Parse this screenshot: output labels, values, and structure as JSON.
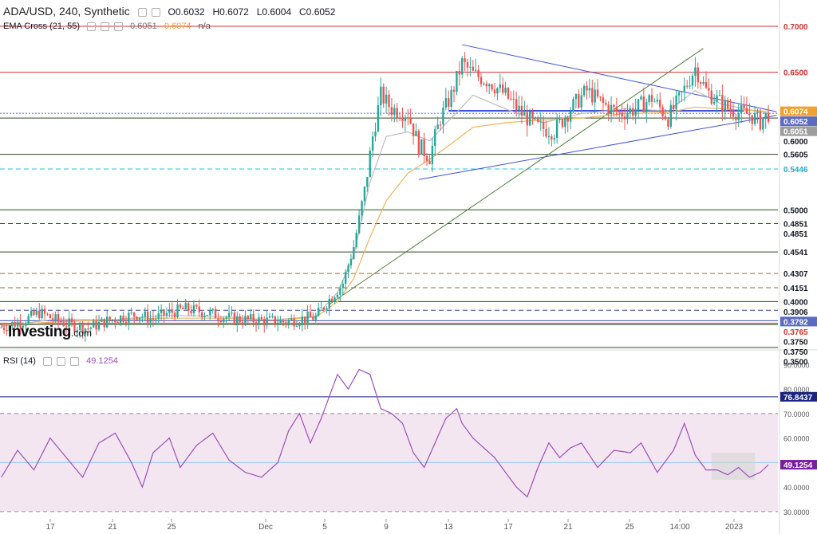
{
  "header": {
    "symbol": "ADA/USD, 240, Synthetic",
    "open": "O0.6032",
    "high": "H0.6072",
    "low": "L0.6004",
    "close": "C0.6052"
  },
  "ema_legend": {
    "name": "EMA Cross (21, 55)",
    "value1": "0.6051",
    "value2": "0.6074",
    "value3": "n/a"
  },
  "rsi_legend": {
    "name": "RSI (14)",
    "value": "49.1254"
  },
  "logo": {
    "text": "Investing",
    "suffix": ".com"
  },
  "colors": {
    "candle_up": "#26a69a",
    "candle_down": "#ef5350",
    "ema_fast": "#bdbdbd",
    "ema_slow": "#f0b35b",
    "trend_blue": "#3f51d8",
    "trend_green": "#4f7f3a",
    "rsi_line": "#9c4fba",
    "rsi_band": "#f3e6f1",
    "resistance_red": "#d32f2f",
    "support_dark_green": "#2e4a23",
    "level_blue_dashed": "#303f9f",
    "level_cyan": "#26c6da",
    "level_brown": "#8d6e4f"
  },
  "chart_data": [
    {
      "type": "candlestick",
      "title": "ADA/USD, 240, Synthetic",
      "ylim": [
        0.35,
        0.72
      ],
      "x_ticks": [
        "17",
        "21",
        "25",
        "Dec",
        "5",
        "9",
        "13",
        "17",
        "21",
        "25",
        "14:00",
        "2023"
      ],
      "price_levels": [
        {
          "value": 0.7,
          "label": "0.7000",
          "color": "#d32f2f",
          "style": "solid",
          "tag": "red"
        },
        {
          "value": 0.65,
          "label": "0.6500",
          "color": "#d32f2f",
          "style": "solid",
          "tag": "red"
        },
        {
          "value": 0.6074,
          "label": "0.6074",
          "color": "#f0a030",
          "style": "none",
          "tag": "orange"
        },
        {
          "value": 0.6052,
          "label": "0.6052",
          "color": "#5c6bc0",
          "style": "dotted",
          "tag": "blue"
        },
        {
          "value": 0.6051,
          "label": "0.6051",
          "color": "#9e9e9e",
          "style": "none",
          "tag": "gray"
        },
        {
          "value": 0.6,
          "label": "0.6000",
          "color": "#2e4a23",
          "style": "solid",
          "tag": "none"
        },
        {
          "value": 0.5605,
          "label": "0.5605",
          "color": "#2e4a23",
          "style": "solid",
          "tag": "none"
        },
        {
          "value": 0.5446,
          "label": "0.5446",
          "color": "#26c6da",
          "style": "dashed",
          "tag": "cyan"
        },
        {
          "value": 0.5,
          "label": "0.5000",
          "color": "#2e4a23",
          "style": "solid",
          "tag": "none"
        },
        {
          "value": 0.4851,
          "label": "0.4851",
          "color": "#303f9f",
          "style": "dashed",
          "tag": "none"
        },
        {
          "value": 0.4851,
          "label": "0.4851",
          "color": "#303f9f",
          "style": "none",
          "tag": "none"
        },
        {
          "value": 0.4541,
          "label": "0.4541",
          "color": "#2e4a23",
          "style": "solid",
          "tag": "none"
        },
        {
          "value": 0.4307,
          "label": "0.4307",
          "color": "#8d6e4f",
          "style": "dashed",
          "tag": "none"
        },
        {
          "value": 0.4151,
          "label": "0.4151",
          "color": "#8d6e4f",
          "style": "dashed",
          "tag": "none"
        },
        {
          "value": 0.4,
          "label": "0.4000",
          "color": "#2e4a23",
          "style": "solid",
          "tag": "none"
        },
        {
          "value": 0.3906,
          "label": "0.3906",
          "color": "#303f9f",
          "style": "dashed",
          "tag": "none"
        },
        {
          "value": 0.3792,
          "label": "0.3792",
          "color": "#3f51b5",
          "style": "solid",
          "tag": "blue"
        },
        {
          "value": 0.3765,
          "label": "0.3765",
          "color": "#d32f2f",
          "style": "solid",
          "tag": "red"
        },
        {
          "value": 0.375,
          "label": "0.3750",
          "color": "#2e4a23",
          "style": "solid",
          "tag": "none"
        },
        {
          "value": 0.375,
          "label": "0.3750",
          "color": "#2e4a23",
          "style": "none",
          "tag": "none"
        },
        {
          "value": 0.35,
          "label": "0.3500",
          "color": "#2e4a23",
          "style": "solid",
          "tag": "none"
        }
      ],
      "price_path": [
        [
          0,
          0.372
        ],
        [
          8,
          0.379
        ],
        [
          14,
          0.388
        ],
        [
          20,
          0.38
        ],
        [
          26,
          0.374
        ],
        [
          32,
          0.371
        ],
        [
          38,
          0.378
        ],
        [
          44,
          0.383
        ],
        [
          50,
          0.386
        ],
        [
          56,
          0.381
        ],
        [
          62,
          0.388
        ],
        [
          68,
          0.392
        ],
        [
          74,
          0.389
        ],
        [
          80,
          0.385
        ],
        [
          86,
          0.381
        ],
        [
          92,
          0.38
        ],
        [
          98,
          0.379
        ],
        [
          104,
          0.378
        ],
        [
          110,
          0.381
        ],
        [
          116,
          0.383
        ],
        [
          120,
          0.399
        ],
        [
          126,
          0.42
        ],
        [
          130,
          0.46
        ],
        [
          134,
          0.52
        ],
        [
          137,
          0.58
        ],
        [
          140,
          0.625
        ],
        [
          144,
          0.61
        ],
        [
          150,
          0.605
        ],
        [
          154,
          0.57
        ],
        [
          158,
          0.558
        ],
        [
          162,
          0.6
        ],
        [
          166,
          0.625
        ],
        [
          170,
          0.66
        ],
        [
          174,
          0.648
        ],
        [
          180,
          0.64
        ],
        [
          186,
          0.625
        ],
        [
          192,
          0.605
        ],
        [
          198,
          0.59
        ],
        [
          204,
          0.586
        ],
        [
          210,
          0.61
        ],
        [
          216,
          0.63
        ],
        [
          222,
          0.615
        ],
        [
          228,
          0.605
        ],
        [
          234,
          0.61
        ],
        [
          240,
          0.622
        ],
        [
          246,
          0.6
        ],
        [
          250,
          0.62
        ],
        [
          256,
          0.655
        ],
        [
          260,
          0.63
        ],
        [
          264,
          0.62
        ],
        [
          268,
          0.611
        ],
        [
          272,
          0.606
        ],
        [
          276,
          0.604
        ],
        [
          280,
          0.596
        ],
        [
          283,
          0.605
        ]
      ],
      "ema_fast": [
        [
          0,
          0.373
        ],
        [
          20,
          0.381
        ],
        [
          40,
          0.38
        ],
        [
          60,
          0.385
        ],
        [
          80,
          0.384
        ],
        [
          100,
          0.38
        ],
        [
          116,
          0.384
        ],
        [
          124,
          0.41
        ],
        [
          130,
          0.45
        ],
        [
          136,
          0.53
        ],
        [
          142,
          0.58
        ],
        [
          150,
          0.585
        ],
        [
          158,
          0.575
        ],
        [
          166,
          0.6
        ],
        [
          174,
          0.625
        ],
        [
          186,
          0.61
        ],
        [
          200,
          0.595
        ],
        [
          214,
          0.605
        ],
        [
          230,
          0.61
        ],
        [
          246,
          0.608
        ],
        [
          256,
          0.63
        ],
        [
          266,
          0.615
        ],
        [
          283,
          0.6051
        ]
      ],
      "ema_slow": [
        [
          0,
          0.374
        ],
        [
          20,
          0.378
        ],
        [
          40,
          0.38
        ],
        [
          60,
          0.382
        ],
        [
          80,
          0.382
        ],
        [
          100,
          0.38
        ],
        [
          116,
          0.383
        ],
        [
          124,
          0.4
        ],
        [
          130,
          0.425
        ],
        [
          136,
          0.47
        ],
        [
          142,
          0.51
        ],
        [
          150,
          0.54
        ],
        [
          158,
          0.555
        ],
        [
          166,
          0.572
        ],
        [
          174,
          0.59
        ],
        [
          186,
          0.595
        ],
        [
          200,
          0.598
        ],
        [
          214,
          0.6
        ],
        [
          230,
          0.605
        ],
        [
          246,
          0.606
        ],
        [
          256,
          0.612
        ],
        [
          266,
          0.61
        ],
        [
          283,
          0.6074
        ]
      ],
      "trendlines": [
        {
          "name": "upper",
          "color": "#3f51d8",
          "from": [
            170,
            0.68
          ],
          "to": [
            286,
            0.607
          ]
        },
        {
          "name": "lower",
          "color": "#3f51d8",
          "from": [
            154,
            0.533
          ],
          "to": [
            286,
            0.603
          ]
        },
        {
          "name": "rising",
          "color": "#4f7f3a",
          "from": [
            121,
            0.397
          ],
          "to": [
            259,
            0.676
          ]
        },
        {
          "name": "box",
          "color": "#3f51d8",
          "from": [
            165,
            0.608
          ],
          "to": [
            274,
            0.608
          ]
        }
      ]
    },
    {
      "type": "line",
      "title": "RSI (14)",
      "ylim": [
        28,
        95
      ],
      "y_ticks": [
        30,
        40,
        50,
        60,
        70,
        80,
        90
      ],
      "y_tick_labels": [
        "30.0000",
        "40.0000",
        "50.0000",
        "60.0000",
        "70.0000",
        "80.0000",
        "90.0000"
      ],
      "bands": {
        "upper": 70,
        "lower": 30
      },
      "levels": [
        {
          "value": 76.8437,
          "label": "76.8437",
          "color": "#1a237e",
          "tag": "navy"
        },
        {
          "value": 50,
          "label": "50.0000",
          "color": "#90caf9",
          "tag": "light"
        },
        {
          "value": 49.1254,
          "label": "49.1254",
          "color": "#7b1fa2",
          "tag": "purple"
        }
      ],
      "rsi_path": [
        [
          0,
          44
        ],
        [
          6,
          55
        ],
        [
          12,
          47
        ],
        [
          18,
          60
        ],
        [
          24,
          52
        ],
        [
          30,
          44
        ],
        [
          36,
          58
        ],
        [
          42,
          62
        ],
        [
          48,
          50
        ],
        [
          52,
          40
        ],
        [
          56,
          54
        ],
        [
          62,
          60
        ],
        [
          66,
          48
        ],
        [
          72,
          57
        ],
        [
          78,
          62
        ],
        [
          84,
          51
        ],
        [
          90,
          46
        ],
        [
          96,
          44
        ],
        [
          102,
          50
        ],
        [
          106,
          63
        ],
        [
          110,
          70
        ],
        [
          114,
          58
        ],
        [
          118,
          68
        ],
        [
          120,
          74
        ],
        [
          124,
          86
        ],
        [
          128,
          80
        ],
        [
          132,
          88
        ],
        [
          136,
          86
        ],
        [
          140,
          72
        ],
        [
          144,
          70
        ],
        [
          148,
          66
        ],
        [
          152,
          54
        ],
        [
          156,
          48
        ],
        [
          160,
          58
        ],
        [
          164,
          68
        ],
        [
          168,
          72
        ],
        [
          170,
          66
        ],
        [
          174,
          60
        ],
        [
          178,
          56
        ],
        [
          182,
          52
        ],
        [
          186,
          46
        ],
        [
          190,
          40
        ],
        [
          194,
          36
        ],
        [
          198,
          48
        ],
        [
          202,
          58
        ],
        [
          206,
          52
        ],
        [
          210,
          56
        ],
        [
          214,
          58
        ],
        [
          220,
          48
        ],
        [
          226,
          55
        ],
        [
          232,
          54
        ],
        [
          236,
          58
        ],
        [
          242,
          46
        ],
        [
          248,
          55
        ],
        [
          252,
          66
        ],
        [
          256,
          53
        ],
        [
          260,
          47
        ],
        [
          264,
          47
        ],
        [
          268,
          45
        ],
        [
          272,
          48
        ],
        [
          276,
          44
        ],
        [
          280,
          46
        ],
        [
          283,
          49.1254
        ]
      ]
    }
  ]
}
